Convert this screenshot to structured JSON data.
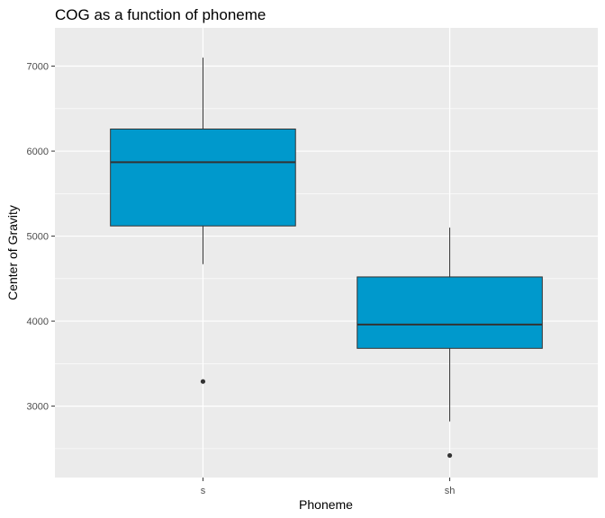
{
  "chart_data": {
    "type": "boxplot",
    "title": "COG as a function of phoneme",
    "xlabel": "Phoneme",
    "ylabel": "Center of Gravity",
    "categories": [
      "s",
      "sh"
    ],
    "yticks": [
      3000,
      4000,
      5000,
      6000,
      7000
    ],
    "ylim": [
      2160,
      7450
    ],
    "grid": true,
    "fill_color": "#0099CC",
    "panel_color": "#EBEBEB",
    "boxes": [
      {
        "category": "s",
        "whisker_low": 4670,
        "q1": 5120,
        "median": 5870,
        "q3": 6260,
        "whisker_high": 7100,
        "outliers": [
          3290
        ]
      },
      {
        "category": "sh",
        "whisker_low": 2820,
        "q1": 3680,
        "median": 3960,
        "q3": 4520,
        "whisker_high": 5100,
        "outliers": [
          2420
        ]
      }
    ]
  }
}
